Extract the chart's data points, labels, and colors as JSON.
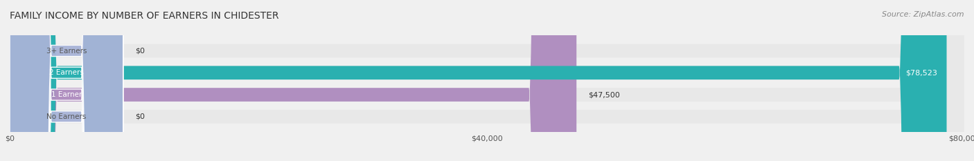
{
  "title": "FAMILY INCOME BY NUMBER OF EARNERS IN CHIDESTER",
  "source": "Source: ZipAtlas.com",
  "categories": [
    "No Earners",
    "1 Earner",
    "2 Earners",
    "3+ Earners"
  ],
  "values": [
    0,
    47500,
    78523,
    0
  ],
  "bar_colors": [
    "#a8b4d8",
    "#b08fc0",
    "#2ab0b0",
    "#a8b4d8"
  ],
  "bar_labels": [
    "$0",
    "$47,500",
    "$78,523",
    "$0"
  ],
  "label_inside": [
    false,
    false,
    true,
    false
  ],
  "xmax": 80000,
  "xticks": [
    0,
    40000,
    80000
  ],
  "xticklabels": [
    "$0",
    "$40,000",
    "$80,000"
  ],
  "background_color": "#f0f0f0",
  "bar_background_color": "#e8e8e8",
  "title_fontsize": 10,
  "source_fontsize": 8
}
